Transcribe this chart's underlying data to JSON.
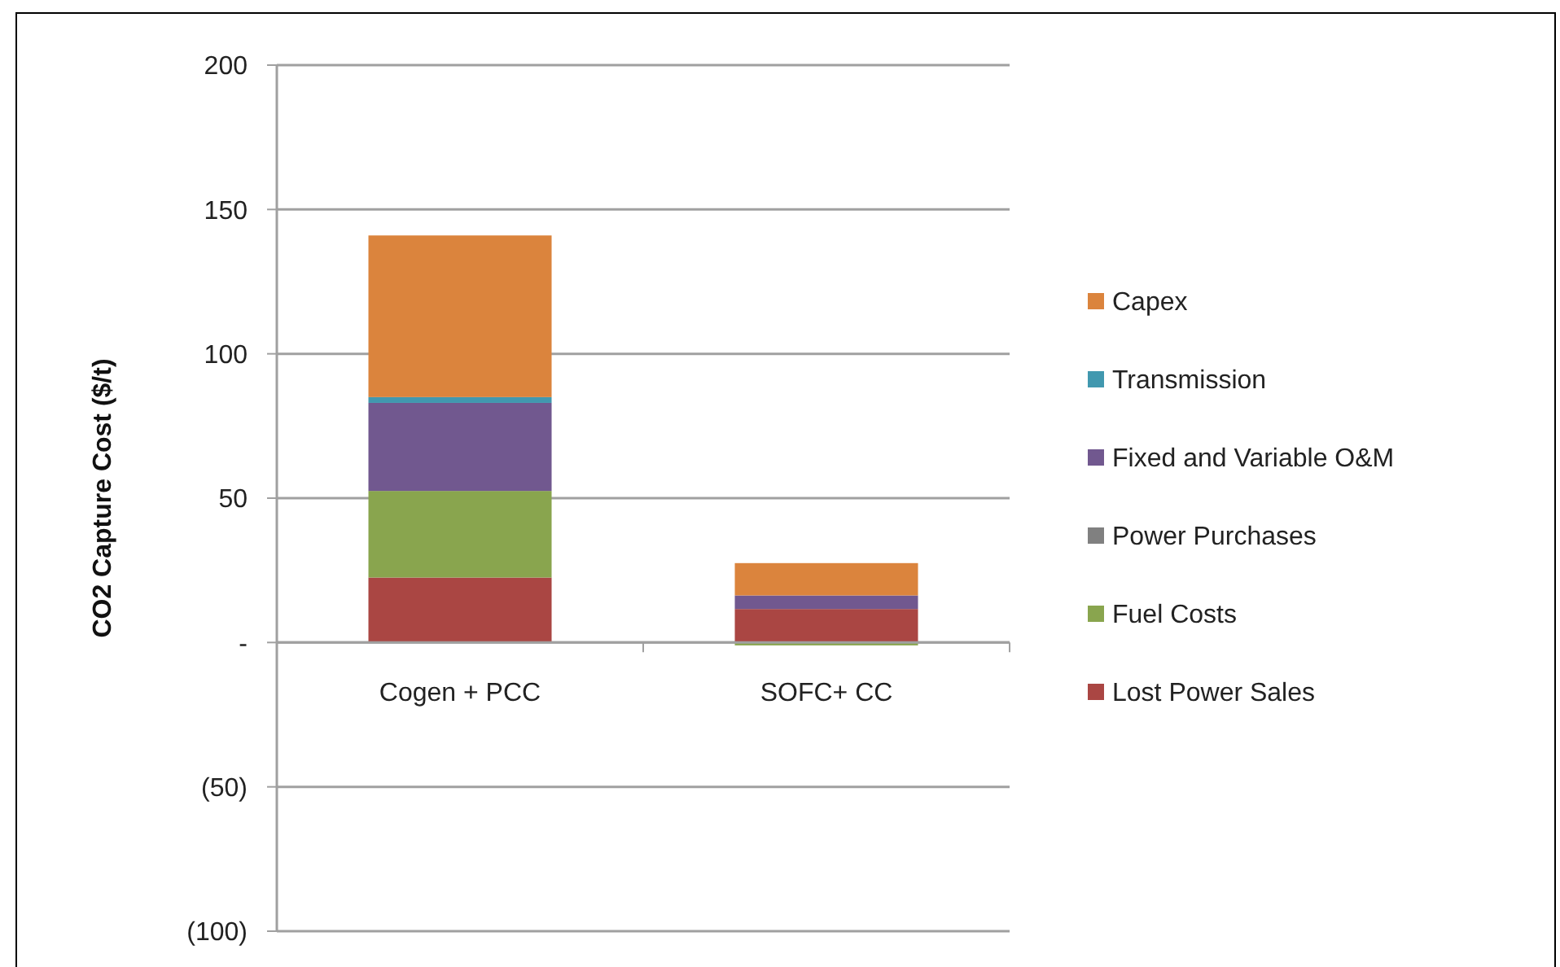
{
  "chart_data": {
    "type": "bar",
    "stacked": true,
    "ylabel": "CO2 Capture Cost ($/t)",
    "categories": [
      "Cogen + PCC",
      "SOFC+ CC"
    ],
    "series": [
      {
        "name": "Lost Power Sales",
        "color": "#aa4643",
        "values": [
          22.5,
          11.6
        ]
      },
      {
        "name": "Fuel Costs",
        "color": "#89a54e",
        "values": [
          30,
          -1
        ]
      },
      {
        "name": "Power Purchases",
        "color": "#808080",
        "values": [
          0,
          0
        ]
      },
      {
        "name": "Fixed and Variable O&M",
        "color": "#71588f",
        "values": [
          30.5,
          4.7
        ]
      },
      {
        "name": "Transmission",
        "color": "#4198af",
        "values": [
          2,
          0
        ]
      },
      {
        "name": "Capex",
        "color": "#db843d",
        "values": [
          56,
          11.2
        ]
      }
    ],
    "ylim": [
      -100,
      200
    ],
    "yticks": [
      {
        "value": -100,
        "label": "(100)"
      },
      {
        "value": -50,
        "label": "(50)"
      },
      {
        "value": 0,
        "label": "-"
      },
      50,
      100,
      150,
      200
    ],
    "grid": "y",
    "legend": "right"
  }
}
